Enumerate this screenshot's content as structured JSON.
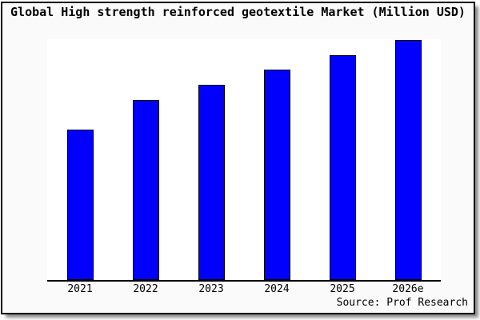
{
  "window": {
    "background": "#fafafa",
    "border_color": "#000000",
    "shadow_color": "#8a8a8a"
  },
  "chart_data": {
    "type": "bar",
    "title": "Global High strength reinforced geotextile Market (Million USD)",
    "categories": [
      "2021",
      "2022",
      "2023",
      "2024",
      "2025",
      "2026e"
    ],
    "values": [
      62.5,
      75,
      81.25,
      87.5,
      93.75,
      100
    ],
    "values_note": "y-axis is unlabeled; values are relative bar heights as percent of the tallest (2026e) bar",
    "xlabel": "",
    "ylabel": "",
    "ylim": [
      0,
      100
    ],
    "grid": false,
    "legend": false,
    "bar_color": "#0000fc",
    "bar_border_color": "#000000",
    "plot_background": "#ffffff",
    "axis_color": "#000000",
    "source_note": "Source: Prof Research"
  }
}
